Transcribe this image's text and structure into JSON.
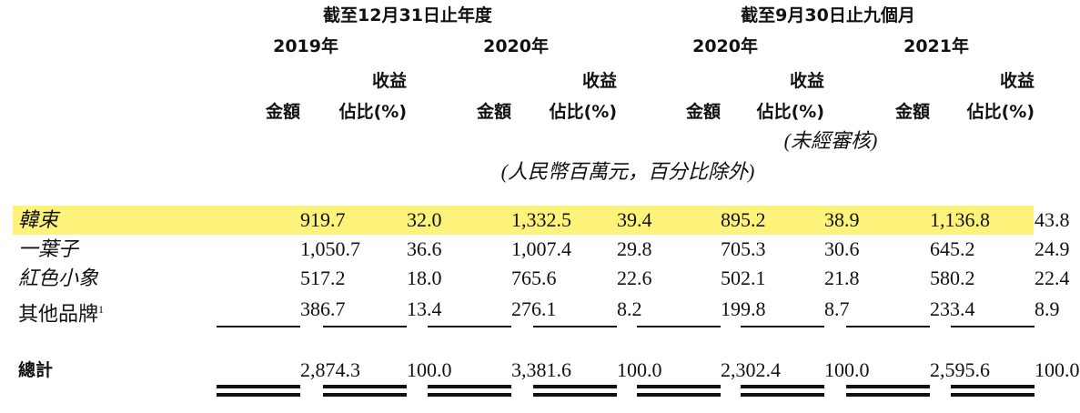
{
  "header": {
    "periods": [
      "截至12月31日止年度",
      "截至9月30日止九個月"
    ],
    "years": [
      "2019年",
      "2020年",
      "2020年",
      "2021年"
    ],
    "revenue": "收益",
    "amount": "金額",
    "share": "佔比(%)",
    "unaudited": "(未經審核)",
    "unit_note": "(人民幣百萬元，百分比除外)"
  },
  "table": {
    "rows": [
      {
        "label": "韓束",
        "values": [
          "919.7",
          "32.0",
          "1,332.5",
          "39.4",
          "895.2",
          "38.9",
          "1,136.8",
          "43.8"
        ]
      },
      {
        "label": "一葉子",
        "values": [
          "1,050.7",
          "36.6",
          "1,007.4",
          "29.8",
          "705.3",
          "30.6",
          "645.2",
          "24.9"
        ]
      },
      {
        "label": "紅色小象",
        "values": [
          "517.2",
          "18.0",
          "765.6",
          "22.6",
          "502.1",
          "21.8",
          "580.2",
          "22.4"
        ]
      },
      {
        "label": "其他品牌",
        "footnote": "1",
        "values": [
          "386.7",
          "13.4",
          "276.1",
          "8.2",
          "199.8",
          "8.7",
          "233.4",
          "8.9"
        ]
      }
    ],
    "total": {
      "label": "總計",
      "values": [
        "2,874.3",
        "100.0",
        "3,381.6",
        "100.0",
        "2,302.4",
        "100.0",
        "2,595.6",
        "100.0"
      ]
    }
  }
}
